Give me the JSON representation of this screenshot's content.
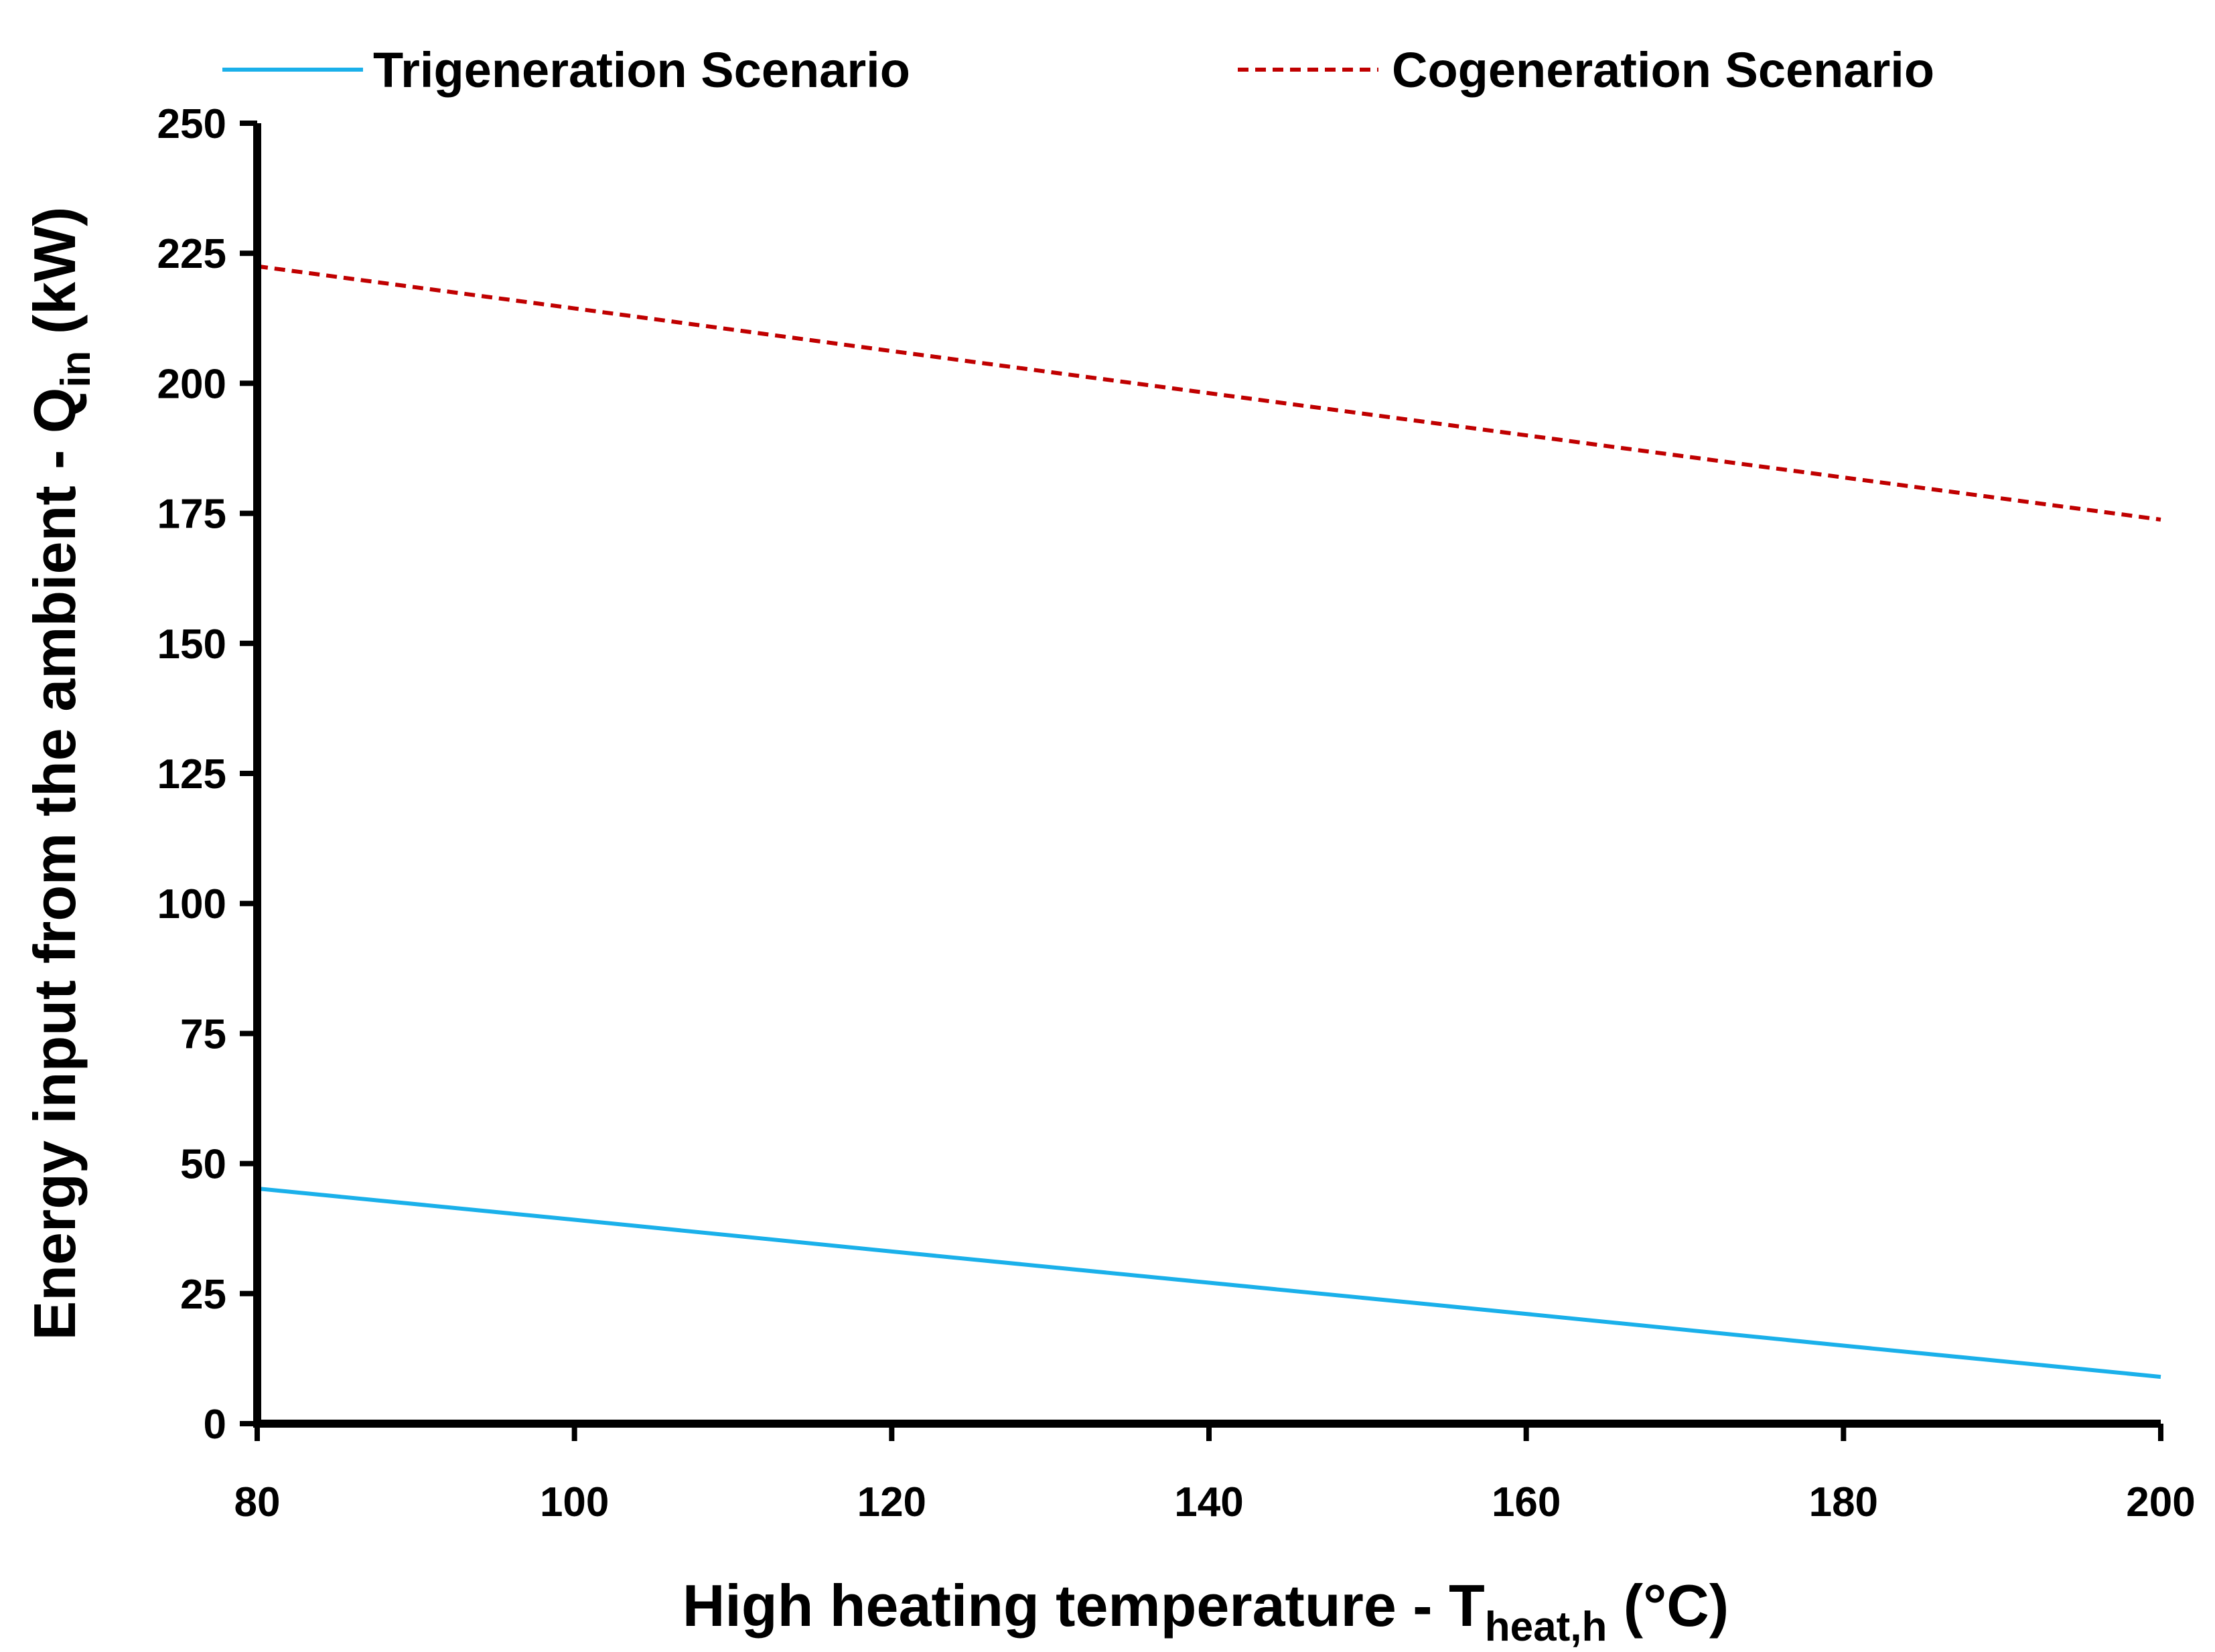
{
  "chart_data": {
    "type": "line",
    "title": "",
    "xlabel": {
      "main": "High heating temperature - T",
      "subscript": "heat,h",
      "unit": " (°C)"
    },
    "ylabel": {
      "main": "Energy input from the ambient - Q",
      "subscript": "in",
      "unit": " (kW)"
    },
    "xlim": [
      80,
      200
    ],
    "ylim": [
      0,
      250
    ],
    "x_ticks": [
      "80",
      "100",
      "120",
      "140",
      "160",
      "180",
      "200"
    ],
    "y_ticks": [
      "0",
      "25",
      "50",
      "75",
      "100",
      "125",
      "150",
      "175",
      "200",
      "225",
      "250"
    ],
    "x_tick_values": [
      80,
      100,
      120,
      140,
      160,
      180,
      200
    ],
    "y_tick_values": [
      0,
      25,
      50,
      75,
      100,
      125,
      150,
      175,
      200,
      225,
      250
    ],
    "grid": false,
    "legend_position": "top",
    "series": [
      {
        "name": "Trigeneration Scenario",
        "color": "#1ab0ea",
        "style": "solid",
        "x": [
          80,
          100,
          120,
          140,
          160,
          180,
          200
        ],
        "values": [
          45.2,
          39.2,
          33.1,
          27.1,
          21.1,
          15.0,
          9.0
        ]
      },
      {
        "name": "Cogeneration Scenario",
        "color": "#c00000",
        "style": "dashed",
        "x": [
          80,
          100,
          120,
          140,
          160,
          180,
          200
        ],
        "values": [
          222.5,
          214.4,
          206.2,
          198.1,
          190.0,
          181.9,
          173.8
        ]
      }
    ]
  }
}
